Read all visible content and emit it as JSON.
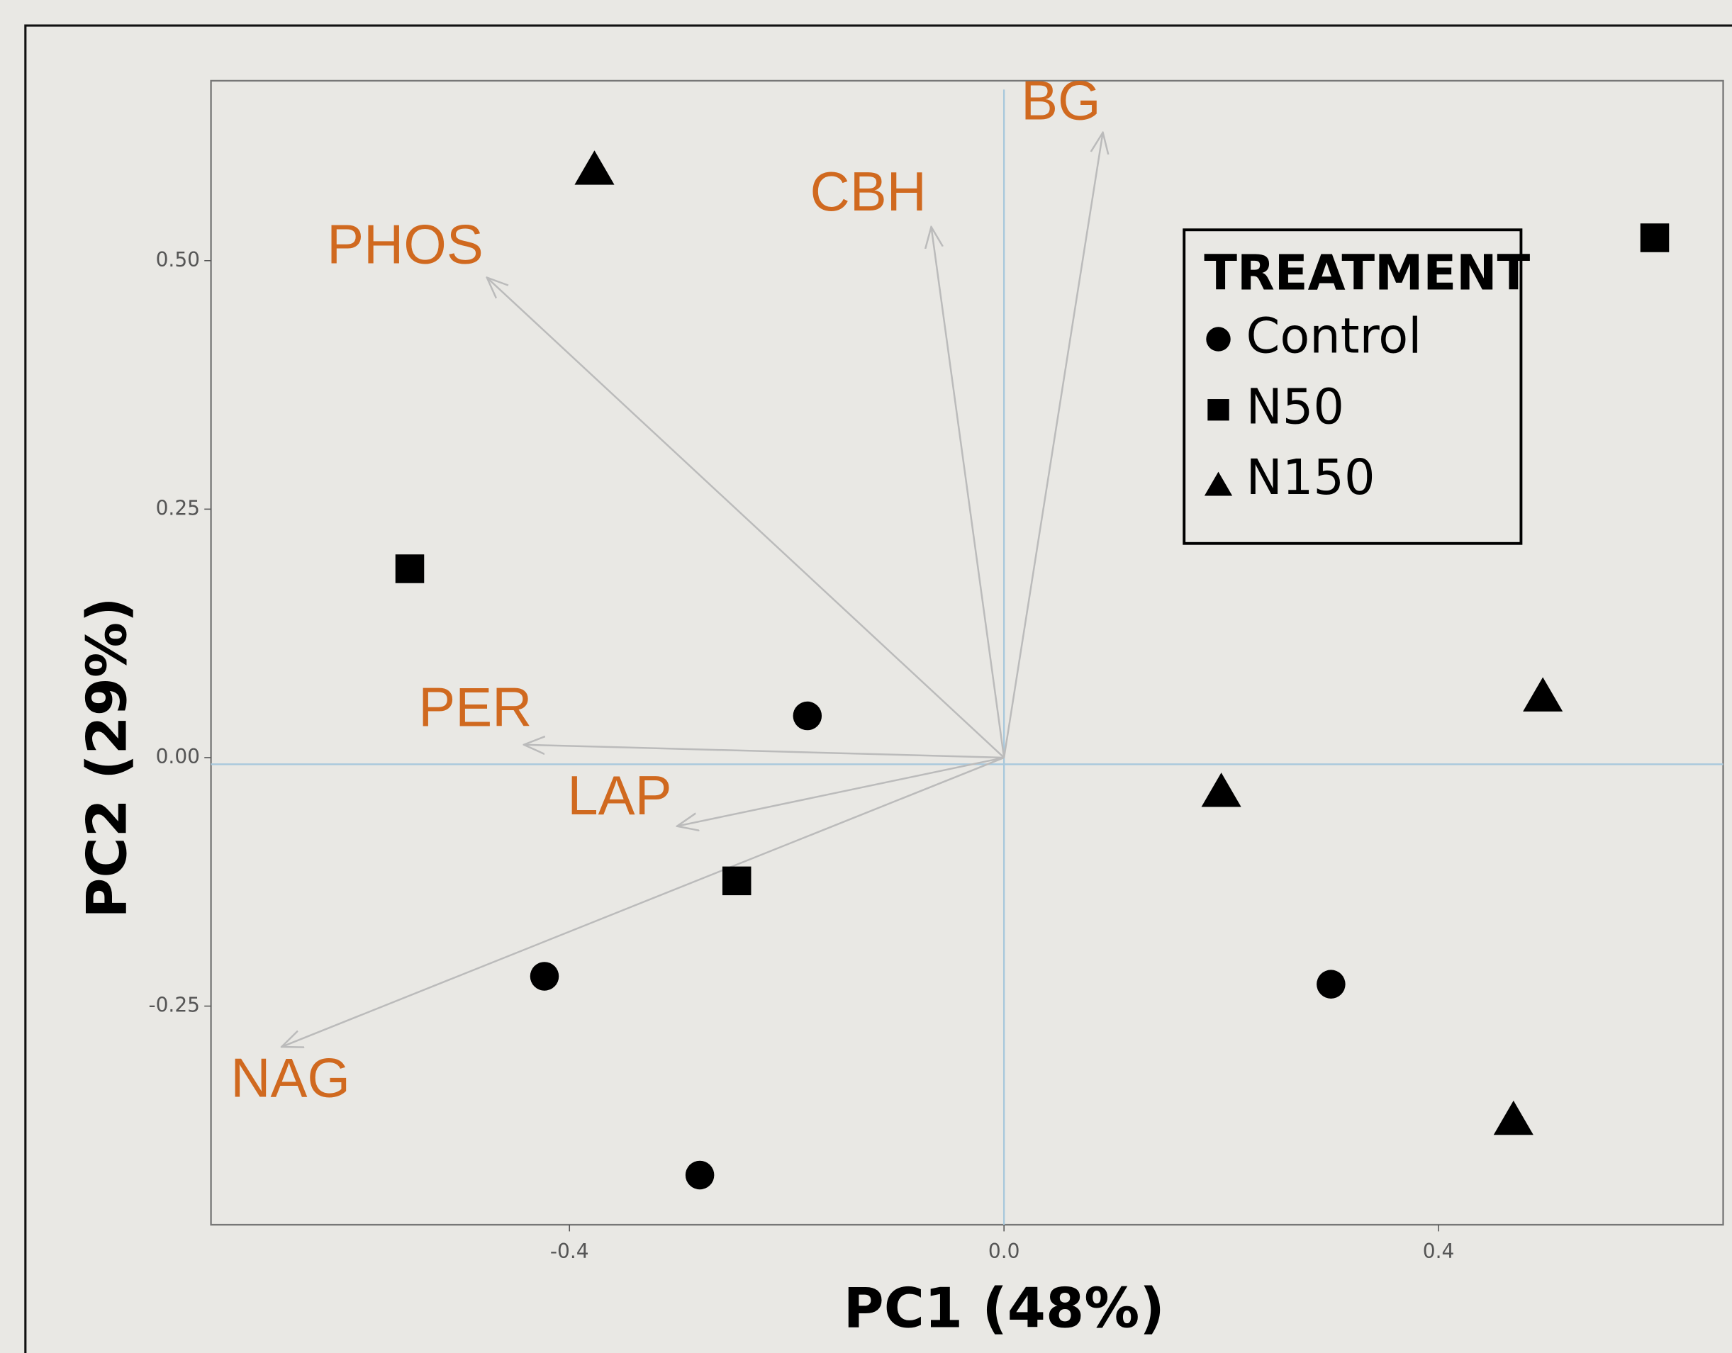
{
  "chart_data": {
    "type": "scatter",
    "x_label": "PC1 (48%)",
    "y_label": "PC2 (29%)",
    "xlim": [
      -0.73,
      0.662
    ],
    "ylim": [
      -0.47,
      0.681
    ],
    "xticks": [
      {
        "value": -0.4,
        "label": "-0.4"
      },
      {
        "value": 0,
        "label": "0.0"
      },
      {
        "value": 0.4,
        "label": "0.4"
      }
    ],
    "yticks": [
      {
        "value": -0.25,
        "label": "-0.25"
      },
      {
        "value": 0,
        "label": "0.00"
      },
      {
        "value": 0.25,
        "label": "0.25"
      },
      {
        "value": 0.5,
        "label": "0.50"
      }
    ],
    "legend_title": "TREATMENT",
    "legend_position": "upper right",
    "series": [
      {
        "name": "Control",
        "marker": "circle",
        "color": "#000000",
        "x": [
          -0.181,
          -0.423,
          0.301,
          -0.28
        ],
        "y": [
          0.042,
          -0.22,
          -0.228,
          -0.42
        ]
      },
      {
        "name": "N50",
        "marker": "square",
        "color": "#000000",
        "x": [
          0.599,
          -0.547,
          -0.246
        ],
        "y": [
          0.523,
          0.19,
          -0.124
        ]
      },
      {
        "name": "N150",
        "marker": "triangle",
        "color": "#000000",
        "x": [
          -0.377,
          0.496,
          0.2,
          0.469
        ],
        "y": [
          0.592,
          0.062,
          -0.034,
          -0.364
        ]
      }
    ],
    "loadings": {
      "color": "#bbbbbb",
      "label_color": "#d0691f",
      "names": [
        "BG",
        "CBH",
        "PHOS",
        "PER",
        "LAP",
        "NAG"
      ],
      "x": [
        0.091,
        -0.067,
        -0.476,
        -0.442,
        -0.301,
        -0.665
      ],
      "y": [
        0.629,
        0.534,
        0.483,
        0.013,
        -0.069,
        -0.291
      ]
    }
  }
}
